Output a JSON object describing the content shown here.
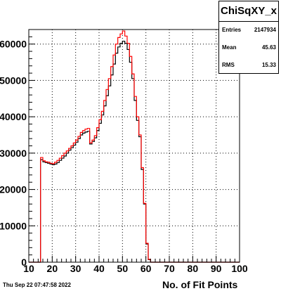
{
  "chart_data": {
    "type": "histogram",
    "title": "",
    "xlabel": "No. of Fit Points",
    "ylabel": "",
    "xlim": [
      10,
      100
    ],
    "ylim": [
      0,
      64000
    ],
    "bin_width": 1,
    "grid": true,
    "x_ticks": [
      10,
      20,
      30,
      40,
      50,
      60,
      70,
      80,
      90,
      100
    ],
    "y_ticks": [
      0,
      10000,
      20000,
      30000,
      40000,
      50000,
      60000
    ],
    "y_tick_labels": [
      "0",
      "10000",
      "20000",
      "30000",
      "40000",
      "50000",
      "60000"
    ],
    "x_tick_labels": [
      "10",
      "20",
      "30",
      "40",
      "50",
      "60",
      "70",
      "80",
      "90",
      "100"
    ],
    "bin_edges_start": 15,
    "series": [
      {
        "color": "#000000",
        "values": [
          28200,
          27600,
          27400,
          27200,
          27000,
          26800,
          27000,
          27400,
          28000,
          28600,
          29200,
          30000,
          30800,
          31500,
          32200,
          33000,
          34000,
          35000,
          35500,
          35800,
          36000,
          32500,
          33200,
          34200,
          36200,
          38200,
          40500,
          43000,
          45800,
          48500,
          51500,
          54500,
          57500,
          59200,
          60200,
          60800,
          60200,
          58500,
          55000,
          50500,
          44500,
          39000,
          34500,
          25500,
          16000,
          5000,
          700
        ]
      },
      {
        "color": "#ff0000",
        "values": [
          28800,
          27900,
          27600,
          27500,
          27200,
          27100,
          27500,
          28000,
          28600,
          29300,
          30000,
          30600,
          31300,
          32000,
          32800,
          33600,
          34600,
          35700,
          36200,
          36600,
          36800,
          32800,
          33600,
          34800,
          37000,
          39200,
          41500,
          44500,
          47500,
          50500,
          53800,
          57000,
          60000,
          61800,
          62800,
          63600,
          62200,
          60200,
          56600,
          51800,
          45600,
          40000,
          35000,
          26000,
          16200,
          5200,
          800
        ]
      }
    ]
  },
  "stats": {
    "title": "ChiSqXY_x",
    "entries_label": "Entries",
    "entries_value": "2147934",
    "mean_label": "Mean",
    "mean_value": "45.63",
    "rms_label": "RMS",
    "rms_value": "15.33"
  },
  "footer": {
    "timestamp": "Thu Sep 22 07:47:58 2022"
  }
}
